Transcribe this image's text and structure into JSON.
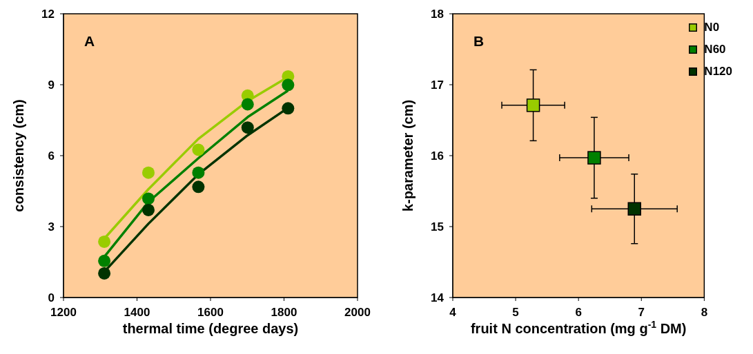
{
  "chart_data": [
    {
      "type": "scatter",
      "title": "A",
      "xlabel": "thermal time (degree days)",
      "ylabel": "consistency (cm)",
      "marker": "circle",
      "xlim": [
        1200,
        2000
      ],
      "xticks": [
        1200,
        1400,
        1600,
        1800,
        2000
      ],
      "ylim": [
        0,
        12
      ],
      "yticks": [
        0,
        3,
        6,
        9,
        12
      ],
      "grid": false,
      "legend": false,
      "series": [
        {
          "type": "line",
          "marker": "none",
          "color": "#99cc00",
          "x": [
            1311,
            1431,
            1567,
            1701,
            1811
          ],
          "values": [
            2.49,
            4.58,
            6.71,
            8.31,
            9.33
          ]
        },
        {
          "type": "line",
          "marker": "none",
          "color": "#008000",
          "x": [
            1311,
            1431,
            1567,
            1701,
            1811
          ],
          "values": [
            1.72,
            4.04,
            5.89,
            7.63,
            8.75
          ]
        },
        {
          "type": "line",
          "marker": "none",
          "color": "#003300",
          "x": [
            1311,
            1431,
            1567,
            1701,
            1811
          ],
          "values": [
            1.09,
            3.12,
            5.21,
            6.86,
            8.02
          ]
        },
        {
          "color": "#99cc00",
          "x": [
            1311,
            1431,
            1567,
            1701,
            1811
          ],
          "values": [
            2.36,
            5.28,
            6.25,
            8.54,
            9.35
          ]
        },
        {
          "color": "#008000",
          "x": [
            1311,
            1431,
            1567,
            1701,
            1811
          ],
          "values": [
            1.55,
            4.18,
            5.28,
            8.17,
            8.99
          ]
        },
        {
          "color": "#003300",
          "x": [
            1311,
            1431,
            1567,
            1701,
            1811
          ],
          "values": [
            1.02,
            3.7,
            4.68,
            7.19,
            8.0
          ]
        }
      ]
    },
    {
      "type": "scatter",
      "title": "B",
      "xlabel": "fruit N concentration (mg g$^{-1}$ DM)",
      "ylabel": "k-parameter (cm)",
      "marker": "square",
      "xlim": [
        4,
        8
      ],
      "xticks": [
        4,
        5,
        6,
        7,
        8
      ],
      "ylim": [
        14,
        18
      ],
      "yticks": [
        14,
        15,
        16,
        17,
        18
      ],
      "grid": false,
      "legend": "top right",
      "series": [
        {
          "name": "N0",
          "color": "#99cc00",
          "x": [
            5.28
          ],
          "values": [
            16.71
          ],
          "errors": [
            0.5
          ],
          "xerrors": [
            0.5
          ]
        },
        {
          "name": "N60",
          "color": "#008000",
          "x": [
            6.25
          ],
          "values": [
            15.97
          ],
          "errors": [
            0.57
          ],
          "xerrors": [
            0.55
          ]
        },
        {
          "name": "N120",
          "color": "#003300",
          "x": [
            6.89
          ],
          "values": [
            15.25
          ],
          "errors": [
            0.49
          ],
          "xerrors": [
            0.68
          ]
        }
      ]
    }
  ]
}
